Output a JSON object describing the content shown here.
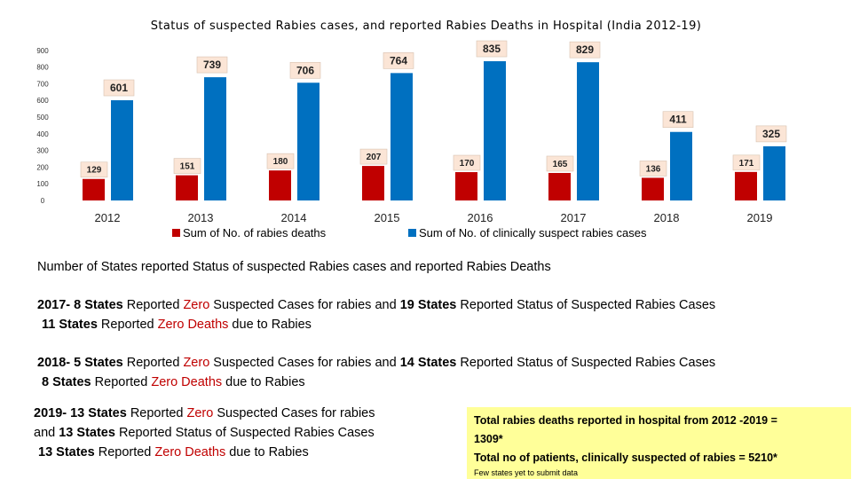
{
  "chart_data": {
    "type": "bar",
    "title": "Status of suspected Rabies cases, and reported Rabies Deaths in Hospital (India 2012-19)",
    "categories": [
      "2012",
      "2013",
      "2014",
      "2015",
      "2016",
      "2017",
      "2018",
      "2019"
    ],
    "series": [
      {
        "name": "Sum of No. of rabies deaths",
        "color": "#c00000",
        "values": [
          129,
          151,
          180,
          207,
          170,
          165,
          136,
          171
        ]
      },
      {
        "name": "Sum of No. of clinically suspect rabies cases",
        "color": "#0070c0",
        "values": [
          601,
          739,
          706,
          764,
          835,
          829,
          411,
          325
        ]
      }
    ],
    "yticks": [
      0,
      100,
      200,
      300,
      400,
      500,
      600,
      700,
      800,
      900
    ],
    "ylim": [
      0,
      900
    ],
    "grid": false,
    "legend": "bottom"
  },
  "text": {
    "heading": "Number of States reported Status of suspected Rabies cases and reported Rabies Deaths",
    "zero": "Zero",
    "zero_deaths": "Zero Deaths",
    "y2017": {
      "l1a": "2017- 8 States",
      "l1b": " Reported ",
      "l1c": " Suspected Cases for rabies and ",
      "l1d": "19 States",
      "l1e": " Reported Status of Suspected Rabies Cases",
      "l2a": "11 States",
      "l2b": " Reported ",
      "l2c": " due to Rabies"
    },
    "y2018": {
      "l1a": "2018- 5 States",
      "l1b": " Reported ",
      "l1c": " Suspected Cases for rabies and ",
      "l1d": "14 States",
      "l1e": " Reported Status of Suspected Rabies Cases",
      "l2a": "8 States",
      "l2b": " Reported ",
      "l2c": " due to Rabies"
    },
    "y2019": {
      "l1a": "2019- 13 States",
      "l1b": " Reported ",
      "l1c": " Suspected Cases for rabies",
      "l2a": "and ",
      "l2b": "13 States",
      "l2c": " Reported Status of Suspected Rabies Cases",
      "l3a": "13 States",
      "l3b": " Reported ",
      "l3c": " due to Rabies"
    },
    "totals": {
      "line1": "Total rabies deaths reported in hospital from 2012 -2019 =",
      "line2": "1309*",
      "line3": "Total no of patients, clinically suspected of rabies = 5210*",
      "note": "Few states yet to submit data"
    }
  },
  "colors": {
    "deaths": "#c00000",
    "suspected": "#0070c0",
    "label_box": "#fbe5d6",
    "totals_bg": "#ffff99"
  }
}
